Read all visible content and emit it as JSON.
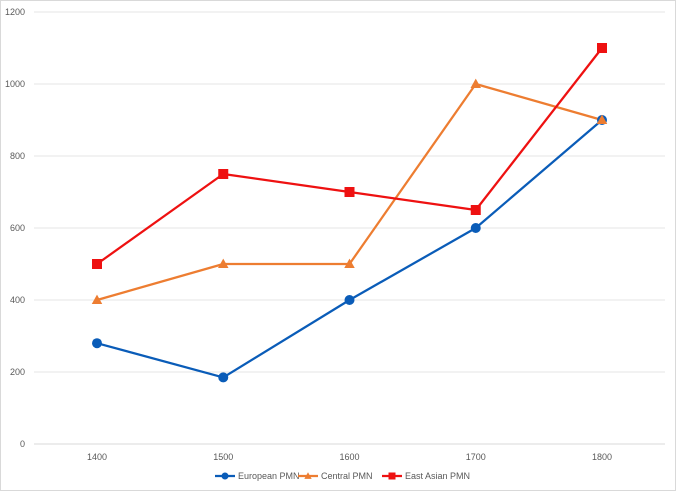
{
  "chart_data": {
    "type": "line",
    "title": "",
    "xlabel": "",
    "ylabel": "",
    "categories": [
      "1400",
      "1500",
      "1600",
      "1700",
      "1800"
    ],
    "ylim": [
      0,
      1200
    ],
    "y_ticks": [
      0,
      200,
      400,
      600,
      800,
      1000,
      1200
    ],
    "grid": true,
    "legend_position": "bottom",
    "series": [
      {
        "name": "European PMN",
        "values": [
          280,
          185,
          400,
          600,
          900
        ],
        "color": "#0a5cb8",
        "marker": "circle"
      },
      {
        "name": "Central PMN",
        "values": [
          400,
          500,
          500,
          1000,
          900
        ],
        "color": "#ed7d31",
        "marker": "triangle"
      },
      {
        "name": "East Asian PMN",
        "values": [
          500,
          750,
          700,
          650,
          1100
        ],
        "color": "#ee1111",
        "marker": "square"
      }
    ]
  }
}
